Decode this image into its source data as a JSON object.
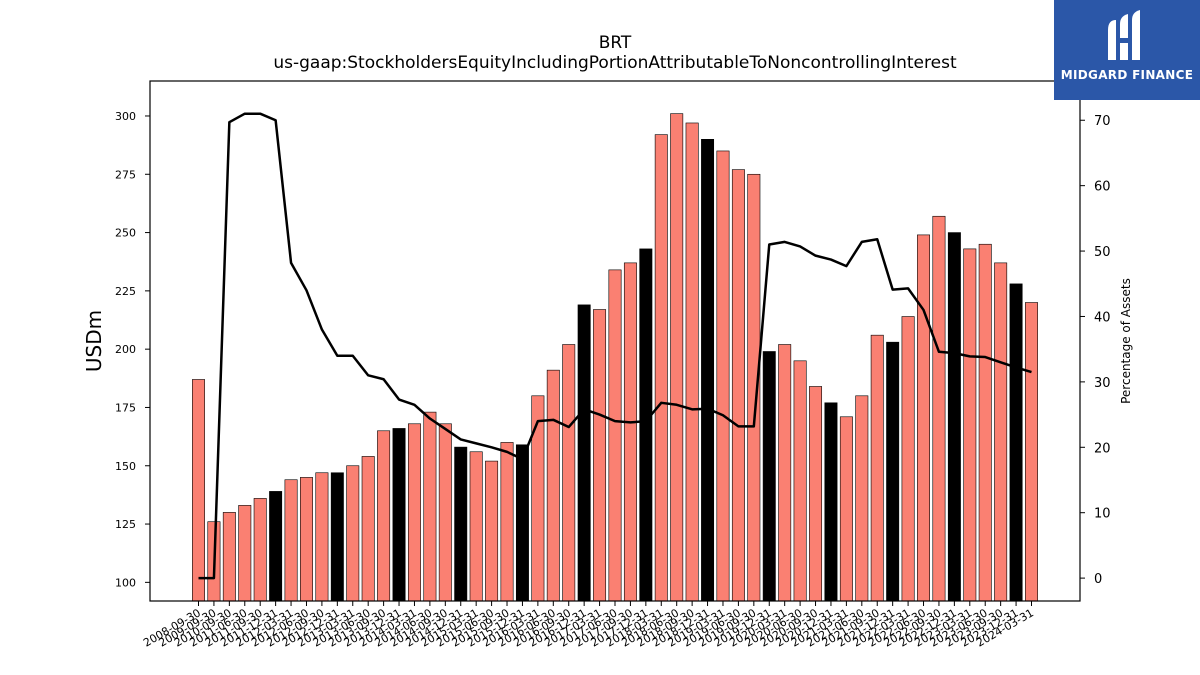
{
  "chart_data": {
    "type": "bar",
    "title": "BRT",
    "subtitle": "us-gaap:StockholdersEquityIncludingPortionAttributableToNoncontrollingInterest",
    "ylabel": "USDm",
    "ylabel_right": "Percentage of Assets",
    "ylim": [
      92,
      315
    ],
    "ylim_right": [
      -3.5,
      76
    ],
    "yticks": [
      100,
      125,
      150,
      175,
      200,
      225,
      250,
      275,
      300
    ],
    "yticks_right": [
      0,
      10,
      20,
      30,
      40,
      50,
      60,
      70
    ],
    "xtick_labels": [
      "2008-09-30",
      "2009-09-30",
      "2010-09-30",
      "2011-06-30",
      "2011-09-30",
      "2011-12-31",
      "2012-03-31",
      "2012-06-30",
      "2012-09-30",
      "2012-12-31",
      "2013-03-31",
      "2013-06-30",
      "2013-09-30",
      "2013-12-31",
      "2014-03-31",
      "2014-06-30",
      "2014-09-30",
      "2014-12-31",
      "2015-03-31",
      "2015-06-30",
      "2015-09-30",
      "2015-12-31",
      "2016-03-31",
      "2016-06-30",
      "2016-09-30",
      "2016-12-31",
      "2017-03-31",
      "2017-06-30",
      "2017-09-30",
      "2017-12-31",
      "2018-03-31",
      "2018-06-30",
      "2018-09-30",
      "2018-12-31",
      "2019-03-31",
      "2019-06-30",
      "2019-09-30",
      "2019-12-31",
      "2020-03-31",
      "2020-06-30",
      "2020-09-30",
      "2020-12-31",
      "2021-03-31",
      "2021-06-30",
      "2021-09-30",
      "2021-12-31",
      "2022-03-31",
      "2022-06-30",
      "2022-09-30",
      "2022-12-31",
      "2023-03-31",
      "2023-06-30",
      "2023-09-30",
      "2023-12-31",
      "2024-03-31"
    ],
    "series": [
      {
        "type": "bar",
        "values": [
          187,
          126,
          130,
          133,
          136,
          139,
          144,
          145,
          147,
          147,
          150,
          154,
          165,
          166,
          168,
          173,
          168,
          158,
          156,
          152,
          160,
          159,
          180,
          191,
          202,
          219,
          217,
          234,
          237,
          243,
          292,
          301,
          297,
          290,
          285,
          277,
          275,
          199,
          202,
          195,
          184,
          177,
          171,
          180,
          206,
          203,
          214,
          249,
          257,
          250,
          243,
          245,
          237,
          228,
          220
        ],
        "highlight_indices": [
          5,
          9,
          13,
          17,
          21,
          25,
          29,
          33,
          37,
          41,
          45,
          49,
          53
        ],
        "colors": {
          "normal": "#fa8072",
          "highlight": "#000000",
          "edge": "#000000"
        }
      },
      {
        "type": "line",
        "axis": "right",
        "values": [
          0,
          0,
          69.7,
          71,
          71,
          70,
          48.2,
          44,
          38,
          34,
          34,
          31,
          30.4,
          27.3,
          26.5,
          24.4,
          22.8,
          21.2,
          20.6,
          20,
          19.3,
          18.2,
          24,
          24.2,
          23.1,
          25.8,
          25,
          24,
          23.8,
          24,
          26.8,
          26.5,
          25.8,
          25.9,
          24.9,
          23.2,
          23.2,
          51,
          51.4,
          50.7,
          49.3,
          48.7,
          47.7,
          51.4,
          51.8,
          44.1,
          44.3,
          41,
          34.6,
          34.4,
          33.9,
          33.8,
          33,
          32.2,
          31.5
        ],
        "color": "#000000"
      }
    ]
  },
  "logo": {
    "text": "MIDGARD FINANCE",
    "colors": {
      "background": "#2b57a8",
      "foreground": "#ffffff"
    }
  }
}
